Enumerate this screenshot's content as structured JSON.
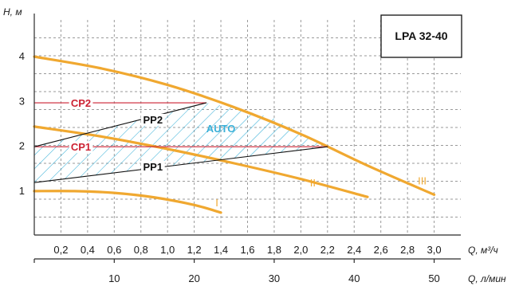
{
  "chart_data": {
    "type": "line",
    "title": "LPA 32-40",
    "ylabel": "H, м",
    "xlabel": "Q, м³/ч",
    "xlabel2": "Q, л/мин",
    "xlim": [
      0,
      3.2
    ],
    "ylim": [
      0,
      4.8
    ],
    "grid": true,
    "y_ticks": [
      "1",
      "2",
      "3",
      "4"
    ],
    "x_ticks": [
      "0,2",
      "0,4",
      "0,6",
      "0,8",
      "1,0",
      "1,2",
      "1,4",
      "1,6",
      "1,8",
      "2,0",
      "2,2",
      "2,4",
      "2,6",
      "2,8",
      "3,0"
    ],
    "x2_ticks": [
      "10",
      "20",
      "30",
      "40",
      "50"
    ],
    "series": [
      {
        "name": "I",
        "color": "#f0a830",
        "x": [
          0,
          0.3,
          0.6,
          0.9,
          1.2,
          1.4
        ],
        "y": [
          0.98,
          0.98,
          0.94,
          0.84,
          0.67,
          0.5
        ]
      },
      {
        "name": "II",
        "color": "#f0a830",
        "x": [
          0,
          0.5,
          1.0,
          1.5,
          2.0,
          2.5
        ],
        "y": [
          2.42,
          2.2,
          1.92,
          1.6,
          1.25,
          0.85
        ]
      },
      {
        "name": "III",
        "color": "#f0a830",
        "x": [
          0,
          0.5,
          1.0,
          1.5,
          2.0,
          2.5,
          3.0
        ],
        "y": [
          3.98,
          3.72,
          3.35,
          2.85,
          2.25,
          1.55,
          0.9
        ]
      },
      {
        "name": "CP2",
        "color": "#cc2233",
        "x": [
          0,
          1.29
        ],
        "y": [
          2.95,
          2.95
        ]
      },
      {
        "name": "CP1",
        "color": "#cc2233",
        "x": [
          0,
          2.2
        ],
        "y": [
          1.97,
          1.97
        ]
      },
      {
        "name": "PP2",
        "color": "#111111",
        "x": [
          0,
          1.29
        ],
        "y": [
          1.97,
          2.95
        ]
      },
      {
        "name": "PP1",
        "color": "#111111",
        "x": [
          0,
          2.2
        ],
        "y": [
          1.17,
          1.97
        ]
      }
    ],
    "auto_region": {
      "label": "AUTO",
      "color": "#3ab0d8",
      "x": [
        0,
        1.29,
        1.5,
        1.8,
        2.2,
        1.2,
        0
      ],
      "y": [
        1.97,
        2.95,
        2.84,
        2.6,
        1.97,
        1.6,
        1.17
      ]
    },
    "curve_labels": [
      {
        "text": "I",
        "x": 1.37,
        "y": 0.73
      },
      {
        "text": "II",
        "x": 2.09,
        "y": 1.17
      },
      {
        "text": "III",
        "x": 2.91,
        "y": 1.22
      },
      {
        "text": "CP2",
        "x": 0.35,
        "y": 2.95
      },
      {
        "text": "CP1",
        "x": 0.35,
        "y": 1.97
      },
      {
        "text": "PP2",
        "x": 0.89,
        "y": 2.58
      },
      {
        "text": "PP1",
        "x": 0.89,
        "y": 1.53
      },
      {
        "text": "AUTO",
        "x": 1.4,
        "y": 2.38
      }
    ]
  }
}
